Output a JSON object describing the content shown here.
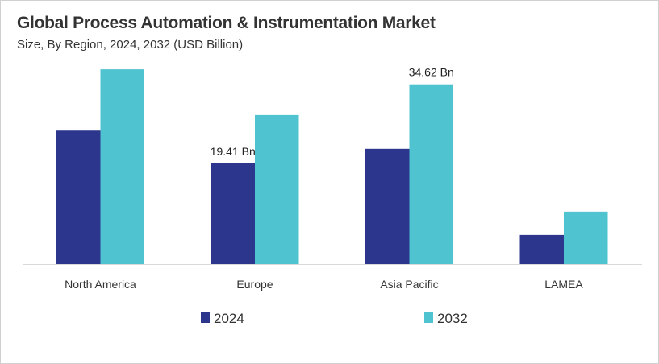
{
  "chart_data": {
    "type": "bar",
    "title": "Global Process Automation & Instrumentation Market",
    "subtitle": "Size, By Region, 2024, 2032 (USD Billion)",
    "categories": [
      "North America",
      "Europe",
      "Asia Pacific",
      "LAMEA"
    ],
    "series": [
      {
        "name": "2024",
        "color": "#2b368c",
        "values": [
          25.7,
          19.41,
          22.2,
          5.6
        ]
      },
      {
        "name": "2032",
        "color": "#4fc3d0",
        "values": [
          37.5,
          28.7,
          34.62,
          10.1
        ]
      }
    ],
    "data_labels": [
      {
        "series": 0,
        "category": "Europe",
        "text": "19.41 Bn"
      },
      {
        "series": 1,
        "category": "Asia Pacific",
        "text": "34.62 Bn"
      }
    ],
    "ylim": [
      0,
      40
    ],
    "grid": false,
    "legend": "bottom"
  }
}
